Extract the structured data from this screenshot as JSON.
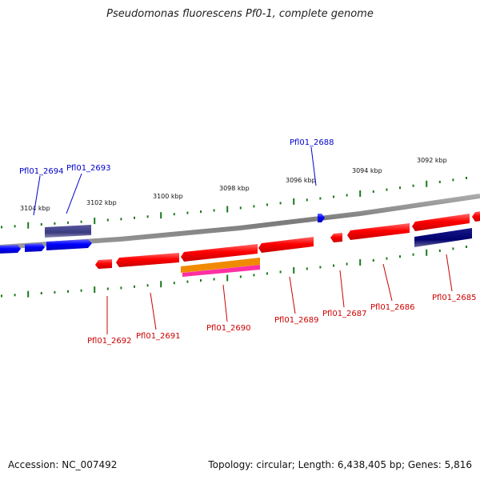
{
  "title": "Pseudomonas fluorescens Pf0-1, complete genome",
  "footer": {
    "accession": "Accession: NC_007492",
    "summary": "Topology: circular; Length: 6,438,405 bp; Genes: 5,816"
  },
  "colors": {
    "backbone": "#808080",
    "forward_gene": "#0000ff",
    "reverse_gene": "#ff0000",
    "forward_feature": "#3f3f87",
    "reverse_feature": "#00007a",
    "orange_feature": "#f08a00",
    "pink_feature": "#ff2fa3",
    "tick": "#1a7a1a",
    "label_forward": "#0000cc",
    "label_reverse": "#cc0000"
  },
  "kbp_ticks": [
    "3104 kbp",
    "3102 kbp",
    "3100 kbp",
    "3098 kbp",
    "3096 kbp",
    "3094 kbp",
    "3092 kbp"
  ],
  "gene_labels": {
    "forward": [
      "Pfl01_2694",
      "Pfl01_2693",
      "Pfl01_2688"
    ],
    "reverse": [
      "Pfl01_2692",
      "Pfl01_2691",
      "Pfl01_2690",
      "Pfl01_2689",
      "Pfl01_2687",
      "Pfl01_2686",
      "Pfl01_2685"
    ]
  }
}
